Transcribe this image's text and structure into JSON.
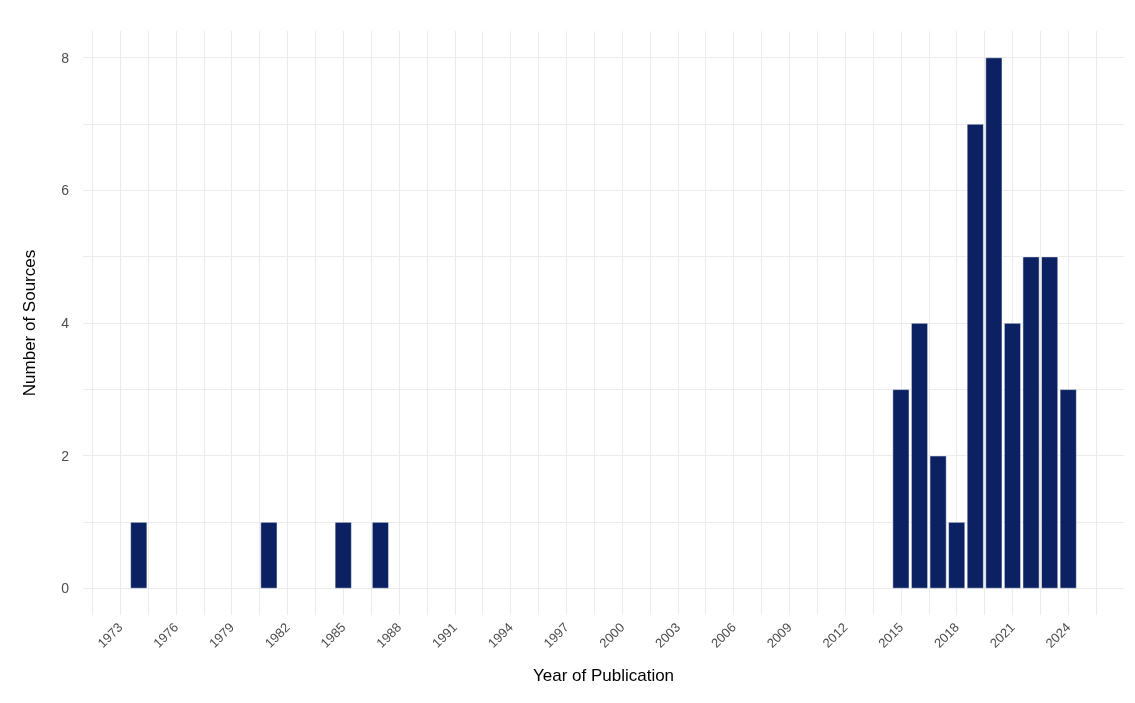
{
  "chart_data": {
    "type": "bar",
    "xlabel": "Year of Publication",
    "ylabel": "Number of Sources",
    "x": [
      1974,
      1981,
      1985,
      1987,
      2015,
      2016,
      2017,
      2018,
      2019,
      2020,
      2021,
      2022,
      2023,
      2024
    ],
    "values": [
      1,
      1,
      1,
      1,
      3,
      4,
      2,
      1,
      7,
      8,
      4,
      5,
      5,
      3
    ],
    "color": "#0b2161",
    "xlim": [
      1971,
      2027
    ],
    "xticks": [
      1973,
      1976,
      1979,
      1982,
      1985,
      1988,
      1991,
      1994,
      1997,
      2000,
      2003,
      2006,
      2009,
      2012,
      2015,
      2018,
      2021,
      2024
    ],
    "ylim": [
      -0.4,
      8.4
    ],
    "yticks": [
      0,
      2,
      4,
      6,
      8
    ],
    "grid": true
  }
}
